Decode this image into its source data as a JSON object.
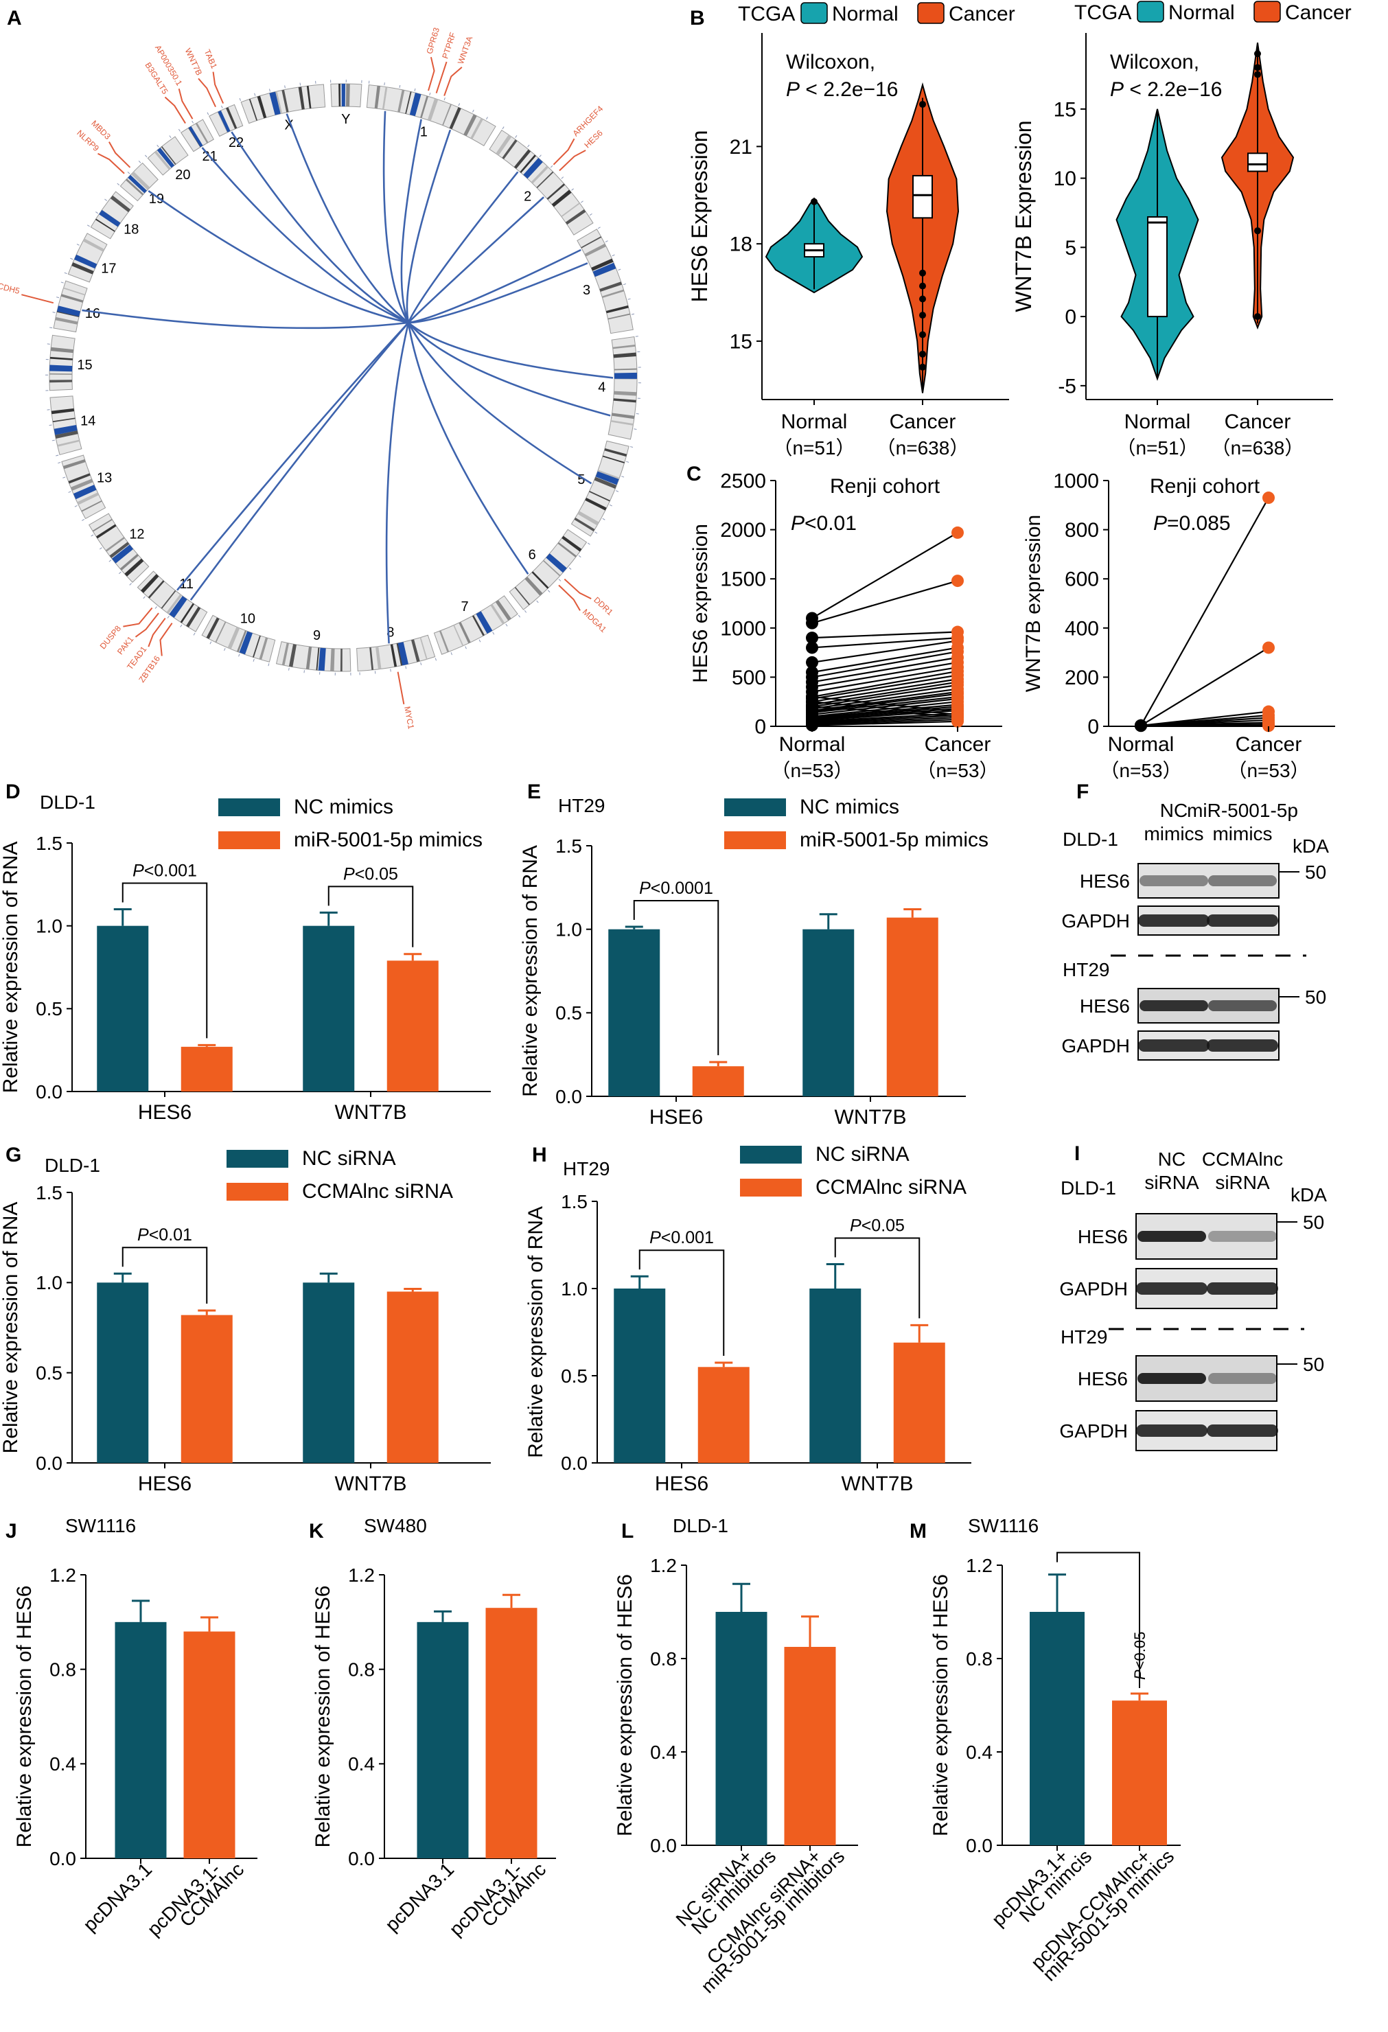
{
  "colors": {
    "teal": "#17a3ad",
    "orange_violin": "#e8501a",
    "dark_teal": "#0c5566",
    "orange": "#ef5e1f",
    "blue_link": "#3d63ad",
    "red_label": "#e05a3a",
    "black": "#000000"
  },
  "panelA": {
    "letter": "A",
    "chromosomes": [
      "1",
      "2",
      "3",
      "4",
      "5",
      "6",
      "7",
      "8",
      "9",
      "10",
      "11",
      "12",
      "13",
      "14",
      "15",
      "16",
      "17",
      "18",
      "19",
      "20",
      "21",
      "22",
      "X",
      "Y"
    ],
    "genes": [
      {
        "name": "GPR63",
        "chrom": "1"
      },
      {
        "name": "PTPRF",
        "chrom": "1"
      },
      {
        "name": "WNT3A",
        "chrom": "1"
      },
      {
        "name": "ARHGEF4",
        "chrom": "2"
      },
      {
        "name": "HES6",
        "chrom": "2"
      },
      {
        "name": "DDR1",
        "chrom": "6"
      },
      {
        "name": "MDGA1",
        "chrom": "6"
      },
      {
        "name": "MYC1",
        "chrom": "8"
      },
      {
        "name": "ZBTB16",
        "chrom": "11"
      },
      {
        "name": "TEAD1",
        "chrom": "11"
      },
      {
        "name": "PAK1",
        "chrom": "11"
      },
      {
        "name": "DUSP8",
        "chrom": "11"
      },
      {
        "name": "CDH5",
        "chrom": "16"
      },
      {
        "name": "NLRP9",
        "chrom": "19"
      },
      {
        "name": "MBD3",
        "chrom": "19"
      },
      {
        "name": "B3GALT5",
        "chrom": "21"
      },
      {
        "name": "AP000350.1",
        "chrom": "21"
      },
      {
        "name": "WNT7B",
        "chrom": "22"
      },
      {
        "name": "TAB1",
        "chrom": "22"
      }
    ]
  },
  "panelB": {
    "letter": "B",
    "cohort": "TCGA",
    "legend": [
      "Normal",
      "Cancer"
    ],
    "stat_line1": "Wilcoxon,",
    "stat_line2_prefix": "P",
    "stat_line2_suffix": " < 2.2e−16",
    "groups": [
      "Normal",
      "Cancer"
    ],
    "counts": [
      "（n=51）",
      "（n=638）"
    ]
  },
  "panelC": {
    "letter": "C",
    "cohort": "Renji cohort",
    "groups": [
      "Normal",
      "Cancer"
    ],
    "counts": [
      "（n=53）",
      "（n=53）"
    ]
  },
  "blots": {
    "F": {
      "letter": "F",
      "cell1": "DLD-1",
      "cell2": "HT29",
      "lane1": [
        "NC",
        "mimics"
      ],
      "lane2": [
        "miR-5001-5p",
        "mimics"
      ],
      "kda": "kDA",
      "marker": "50",
      "bands": [
        "HES6",
        "GAPDH"
      ]
    },
    "I": {
      "letter": "I",
      "cell1": "DLD-1",
      "cell2": "HT29",
      "lane1": [
        "NC",
        "siRNA"
      ],
      "lane2": [
        "CCMAlnc",
        "siRNA"
      ],
      "kda": "kDA",
      "marker": "50",
      "bands": [
        "HES6",
        "GAPDH"
      ]
    }
  },
  "chart_data": [
    {
      "id": "B-left",
      "type": "violin",
      "title": "TCGA",
      "ylabel": "HES6 Expression",
      "categories": [
        "Normal",
        "Cancer"
      ],
      "ylim": [
        13.2,
        24.5
      ],
      "yticks": [
        15,
        18,
        21
      ],
      "annotation": "Wilcoxon, P < 2.2e−16",
      "series": [
        {
          "name": "Normal",
          "min": 16.6,
          "q1": 17.6,
          "median": 17.8,
          "q3": 18.0,
          "max": 19.2
        },
        {
          "name": "Cancer",
          "min": 13.5,
          "q1": 18.8,
          "median": 19.5,
          "q3": 20.1,
          "max": 22.5
        }
      ]
    },
    {
      "id": "B-right",
      "type": "violin",
      "title": "TCGA",
      "ylabel": "WNT7B Expression",
      "categories": [
        "Normal",
        "Cancer"
      ],
      "ylim": [
        -6,
        20.5
      ],
      "yticks": [
        -5,
        0,
        5,
        10,
        15
      ],
      "annotation": "Wilcoxon, P < 2.2e−16",
      "series": [
        {
          "name": "Normal",
          "min": -4.5,
          "q1": 0,
          "median": 6.8,
          "q3": 7.2,
          "max": 15
        },
        {
          "name": "Cancer",
          "min": -0.5,
          "q1": 10.5,
          "median": 11.0,
          "q3": 11.8,
          "max": 19.5
        }
      ]
    },
    {
      "id": "C-left",
      "type": "paired-dot",
      "title": "Renji cohort",
      "ylabel": "HES6 expression",
      "categories": [
        "Normal",
        "Cancer"
      ],
      "ylim": [
        0,
        2500
      ],
      "yticks": [
        0,
        500,
        1000,
        1500,
        2000,
        2500
      ],
      "annotation": "P<0.01",
      "pairs": [
        [
          1100,
          1970
        ],
        [
          1050,
          1480
        ],
        [
          900,
          960
        ],
        [
          800,
          900
        ],
        [
          650,
          870
        ],
        [
          550,
          800
        ],
        [
          500,
          760
        ],
        [
          450,
          700
        ],
        [
          400,
          650
        ],
        [
          350,
          600
        ],
        [
          300,
          560
        ],
        [
          280,
          520
        ],
        [
          250,
          480
        ],
        [
          220,
          450
        ],
        [
          200,
          420
        ],
        [
          180,
          380
        ],
        [
          160,
          350
        ],
        [
          150,
          330
        ],
        [
          140,
          300
        ],
        [
          120,
          280
        ],
        [
          100,
          250
        ],
        [
          90,
          220
        ],
        [
          80,
          200
        ],
        [
          70,
          180
        ],
        [
          60,
          160
        ],
        [
          50,
          130
        ],
        [
          40,
          110
        ],
        [
          30,
          90
        ],
        [
          20,
          70
        ],
        [
          10,
          50
        ],
        [
          300,
          150
        ],
        [
          250,
          120
        ],
        [
          200,
          100
        ]
      ]
    },
    {
      "id": "C-right",
      "type": "paired-dot",
      "title": "Renji cohort",
      "ylabel": "WNT7B expression",
      "categories": [
        "Normal",
        "Cancer"
      ],
      "ylim": [
        0,
        1000
      ],
      "yticks": [
        0,
        200,
        400,
        600,
        800,
        1000
      ],
      "annotation": "P=0.085",
      "pairs": [
        [
          3,
          930
        ],
        [
          3,
          320
        ],
        [
          3,
          60
        ],
        [
          3,
          45
        ],
        [
          3,
          35
        ],
        [
          3,
          25
        ],
        [
          3,
          15
        ],
        [
          3,
          8
        ],
        [
          3,
          4
        ],
        [
          2,
          2
        ]
      ]
    },
    {
      "id": "D",
      "letter": "D",
      "type": "bar",
      "title": "DLD-1",
      "ylabel": "Relative expression of RNA",
      "categories": [
        "HES6",
        "WNT7B"
      ],
      "ylim": [
        0,
        1.5
      ],
      "yticks": [
        "0.0",
        "0.5",
        "1.0",
        "1.5"
      ],
      "legend": [
        "NC mimics",
        "miR-5001-5p mimics"
      ],
      "series": [
        {
          "name": "NC mimics",
          "values": [
            1.0,
            1.0
          ],
          "errors": [
            0.1,
            0.08
          ]
        },
        {
          "name": "miR-5001-5p mimics",
          "values": [
            0.27,
            0.79
          ],
          "errors": [
            0.01,
            0.04
          ]
        }
      ],
      "significance": [
        {
          "group": 0,
          "label": "P<0.001"
        },
        {
          "group": 1,
          "label": "P<0.05"
        }
      ]
    },
    {
      "id": "E",
      "letter": "E",
      "type": "bar",
      "title": "HT29",
      "ylabel": "Relative expression of RNA",
      "categories": [
        "HSE6",
        "WNT7B"
      ],
      "ylim": [
        0,
        1.5
      ],
      "yticks": [
        "0.0",
        "0.5",
        "1.0",
        "1.5"
      ],
      "legend": [
        "NC mimics",
        "miR-5001-5p mimics"
      ],
      "series": [
        {
          "name": "NC mimics",
          "values": [
            1.0,
            1.0
          ],
          "errors": [
            0.015,
            0.09
          ]
        },
        {
          "name": "miR-5001-5p mimics",
          "values": [
            0.18,
            1.07
          ],
          "errors": [
            0.025,
            0.05
          ]
        }
      ],
      "significance": [
        {
          "group": 0,
          "label": "P<0.0001"
        }
      ]
    },
    {
      "id": "G",
      "letter": "G",
      "type": "bar",
      "title": "DLD-1",
      "ylabel": "Relative expression of RNA",
      "categories": [
        "HES6",
        "WNT7B"
      ],
      "ylim": [
        0,
        1.5
      ],
      "yticks": [
        "0.0",
        "0.5",
        "1.0",
        "1.5"
      ],
      "legend": [
        "NC siRNA",
        "CCMAlnc siRNA"
      ],
      "series": [
        {
          "name": "NC siRNA",
          "values": [
            1.0,
            1.0
          ],
          "errors": [
            0.05,
            0.05
          ]
        },
        {
          "name": "CCMAlnc siRNA",
          "values": [
            0.82,
            0.95
          ],
          "errors": [
            0.025,
            0.015
          ]
        }
      ],
      "significance": [
        {
          "group": 0,
          "label": "P<0.01"
        }
      ]
    },
    {
      "id": "H",
      "letter": "H",
      "type": "bar",
      "title": "HT29",
      "ylabel": "Relative expression of RNA",
      "categories": [
        "HES6",
        "WNT7B"
      ],
      "ylim": [
        0,
        1.5
      ],
      "yticks": [
        "0.0",
        "0.5",
        "1.0",
        "1.5"
      ],
      "legend": [
        "NC siRNA",
        "CCMAlnc siRNA"
      ],
      "series": [
        {
          "name": "NC siRNA",
          "values": [
            1.0,
            1.0
          ],
          "errors": [
            0.07,
            0.14
          ]
        },
        {
          "name": "CCMAlnc siRNA",
          "values": [
            0.55,
            0.69
          ],
          "errors": [
            0.025,
            0.1
          ]
        }
      ],
      "significance": [
        {
          "group": 0,
          "label": "P<0.001"
        },
        {
          "group": 1,
          "label": "P<0.05"
        }
      ]
    },
    {
      "id": "J",
      "letter": "J",
      "type": "bar",
      "title": "SW1116",
      "ylabel": "Relative expression of HES6",
      "categories": [
        "pcDNA3.1",
        "pcDNA3.1-CCMAlnc"
      ],
      "tick_lines": [
        [
          "pcDNA3.1"
        ],
        [
          "pcDNA3.1-",
          "CCMAlnc"
        ]
      ],
      "ylim": [
        0,
        1.2
      ],
      "yticks": [
        "0.0",
        "0.4",
        "0.8",
        "1.2"
      ],
      "values": [
        1.0,
        0.96
      ],
      "errors": [
        0.09,
        0.06
      ]
    },
    {
      "id": "K",
      "letter": "K",
      "type": "bar",
      "title": "SW480",
      "ylabel": "Relative expression of HES6",
      "categories": [
        "pcDNA3.1",
        "pcDNA3.1-CCMAlnc"
      ],
      "tick_lines": [
        [
          "pcDNA3.1"
        ],
        [
          "pcDNA3.1-",
          "CCMAlnc"
        ]
      ],
      "ylim": [
        0,
        1.2
      ],
      "yticks": [
        "0.0",
        "0.4",
        "0.8",
        "1.2"
      ],
      "values": [
        1.0,
        1.06
      ],
      "errors": [
        0.045,
        0.055
      ]
    },
    {
      "id": "L",
      "letter": "L",
      "type": "bar",
      "title": "DLD-1",
      "ylabel": "Relative expression of HES6",
      "categories": [
        "NC siRNA+NC inhibitors",
        "CCMAlnc siRNA+miR-5001-5p inhibitors"
      ],
      "tick_lines": [
        [
          "NC siRNA+",
          "NC inhibitors"
        ],
        [
          "CCMAlnc siRNA+",
          "miR-5001-5p inhibitors"
        ]
      ],
      "ylim": [
        0,
        1.2
      ],
      "yticks": [
        "0.0",
        "0.4",
        "0.8",
        "1.2"
      ],
      "values": [
        1.0,
        0.85
      ],
      "errors": [
        0.12,
        0.13
      ]
    },
    {
      "id": "M",
      "letter": "M",
      "type": "bar",
      "title": "SW1116",
      "ylabel": "Relative expression of HES6",
      "categories": [
        "pcDNA3.1+NC mimcis",
        "pcDNA-CCMAlnc+miR-5001-5p mimics"
      ],
      "tick_lines": [
        [
          "pcDNA3.1+",
          "NC mimcis"
        ],
        [
          "pcDNA-CCMAlnc+",
          "miR-5001-5p mimics"
        ]
      ],
      "ylim": [
        0,
        1.2
      ],
      "yticks": [
        "0.0",
        "0.4",
        "0.8",
        "1.2"
      ],
      "values": [
        1.0,
        0.62
      ],
      "errors": [
        0.16,
        0.03
      ],
      "significance_label": "P<0.05"
    }
  ]
}
